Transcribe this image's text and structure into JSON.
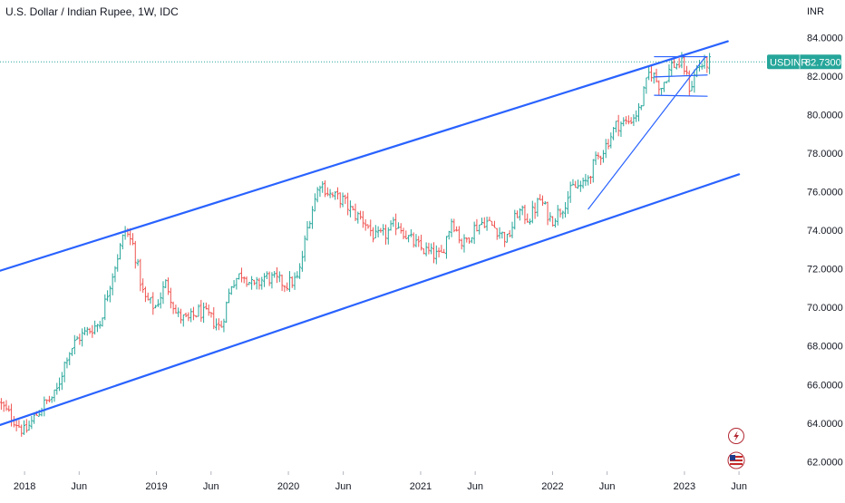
{
  "chart_data": {
    "type": "candlestick",
    "title": "U.S. Dollar / Indian Rupee, 1W, IDC",
    "y_unit": "INR",
    "symbol": "USDINR",
    "last_price": "82.7300",
    "last_price_value": 82.73,
    "ylim": [
      61.5,
      85.0
    ],
    "y_ticks": [
      "84.0000",
      "82.0000",
      "80.0000",
      "78.0000",
      "76.0000",
      "74.0000",
      "72.0000",
      "70.0000",
      "68.0000",
      "66.0000",
      "64.0000",
      "62.0000"
    ],
    "y_tick_values": [
      84,
      82,
      80,
      78,
      76,
      74,
      72,
      70,
      68,
      66,
      64,
      62
    ],
    "x_ticks": [
      "2018",
      "Jun",
      "2019",
      "Jun",
      "2020",
      "Jun",
      "2021",
      "Jun",
      "2022",
      "Jun",
      "2023",
      "Jun"
    ],
    "x_tick_dates": [
      "2018-01-01",
      "2018-06-01",
      "2019-01-01",
      "2019-06-01",
      "2020-01-01",
      "2020-06-01",
      "2021-01-01",
      "2021-06-01",
      "2022-01-01",
      "2022-06-01",
      "2023-01-01",
      "2023-06-01"
    ],
    "xlim": [
      "2017-10-25",
      "2023-08-10"
    ],
    "up_color": "#26a69a",
    "down_color": "#ef5350",
    "line_color": "#2962ff",
    "price_path": [
      [
        "2017-10-25",
        65.1
      ],
      [
        "2017-11-15",
        64.6
      ],
      [
        "2017-12-10",
        64.1
      ],
      [
        "2018-01-05",
        63.5
      ],
      [
        "2018-02-01",
        64.3
      ],
      [
        "2018-03-01",
        65.0
      ],
      [
        "2018-04-01",
        65.5
      ],
      [
        "2018-05-01",
        67.5
      ],
      [
        "2018-06-01",
        68.4
      ],
      [
        "2018-07-01",
        68.8
      ],
      [
        "2018-08-01",
        69.2
      ],
      [
        "2018-09-01",
        71.5
      ],
      [
        "2018-10-10",
        74.0
      ],
      [
        "2018-11-01",
        73.2
      ],
      [
        "2018-12-01",
        70.5
      ],
      [
        "2019-01-01",
        70.0
      ],
      [
        "2019-02-01",
        71.3
      ],
      [
        "2019-03-01",
        69.6
      ],
      [
        "2019-04-01",
        69.3
      ],
      [
        "2019-05-01",
        69.8
      ],
      [
        "2019-06-01",
        69.5
      ],
      [
        "2019-07-01",
        68.9
      ],
      [
        "2019-08-01",
        71.3
      ],
      [
        "2019-09-01",
        71.8
      ],
      [
        "2019-10-01",
        71.0
      ],
      [
        "2019-11-01",
        71.6
      ],
      [
        "2019-12-01",
        71.4
      ],
      [
        "2020-01-01",
        71.2
      ],
      [
        "2020-02-01",
        71.5
      ],
      [
        "2020-03-01",
        74.5
      ],
      [
        "2020-04-01",
        76.5
      ],
      [
        "2020-05-01",
        75.8
      ],
      [
        "2020-06-01",
        75.6
      ],
      [
        "2020-07-01",
        74.9
      ],
      [
        "2020-08-01",
        74.5
      ],
      [
        "2020-09-01",
        73.6
      ],
      [
        "2020-10-01",
        73.8
      ],
      [
        "2020-11-01",
        74.4
      ],
      [
        "2020-12-01",
        73.6
      ],
      [
        "2021-01-01",
        73.1
      ],
      [
        "2021-02-01",
        72.8
      ],
      [
        "2021-03-01",
        72.6
      ],
      [
        "2021-04-01",
        74.6
      ],
      [
        "2021-05-01",
        73.2
      ],
      [
        "2021-06-01",
        74.1
      ],
      [
        "2021-07-01",
        74.5
      ],
      [
        "2021-08-01",
        74.1
      ],
      [
        "2021-09-01",
        73.5
      ],
      [
        "2021-10-01",
        75.0
      ],
      [
        "2021-11-01",
        74.6
      ],
      [
        "2021-12-01",
        75.6
      ],
      [
        "2022-01-01",
        74.5
      ],
      [
        "2022-02-01",
        75.2
      ],
      [
        "2022-03-01",
        76.2
      ],
      [
        "2022-04-01",
        76.3
      ],
      [
        "2022-05-01",
        77.5
      ],
      [
        "2022-06-01",
        78.4
      ],
      [
        "2022-07-01",
        79.5
      ],
      [
        "2022-08-01",
        79.6
      ],
      [
        "2022-09-01",
        80.2
      ],
      [
        "2022-10-01",
        82.3
      ],
      [
        "2022-11-01",
        81.4
      ],
      [
        "2022-12-01",
        82.6
      ],
      [
        "2023-01-01",
        82.6
      ],
      [
        "2023-01-20",
        81.3
      ],
      [
        "2023-02-10",
        82.5
      ],
      [
        "2023-03-10",
        82.7
      ]
    ],
    "trendlines": [
      {
        "name": "channel-top",
        "start": [
          "2017-10-25",
          71.9
        ],
        "end": [
          "2023-05-01",
          83.8
        ],
        "width": 2.2
      },
      {
        "name": "channel-bottom",
        "start": [
          "2017-10-25",
          63.9
        ],
        "end": [
          "2023-06-01",
          76.9
        ],
        "width": 2.2
      },
      {
        "name": "rising-support",
        "start": [
          "2022-04-10",
          75.1
        ],
        "end": [
          "2023-02-28",
          83.0
        ],
        "width": 1.2
      },
      {
        "name": "range-top",
        "start": [
          "2022-10-10",
          83.0
        ],
        "end": [
          "2023-03-05",
          83.0
        ],
        "width": 1.2
      },
      {
        "name": "range-mid",
        "start": [
          "2022-10-10",
          81.95
        ],
        "end": [
          "2023-03-05",
          82.05
        ],
        "width": 1.2
      },
      {
        "name": "range-bottom",
        "start": [
          "2022-10-10",
          81.0
        ],
        "end": [
          "2023-03-05",
          80.95
        ],
        "width": 1.2
      }
    ]
  }
}
